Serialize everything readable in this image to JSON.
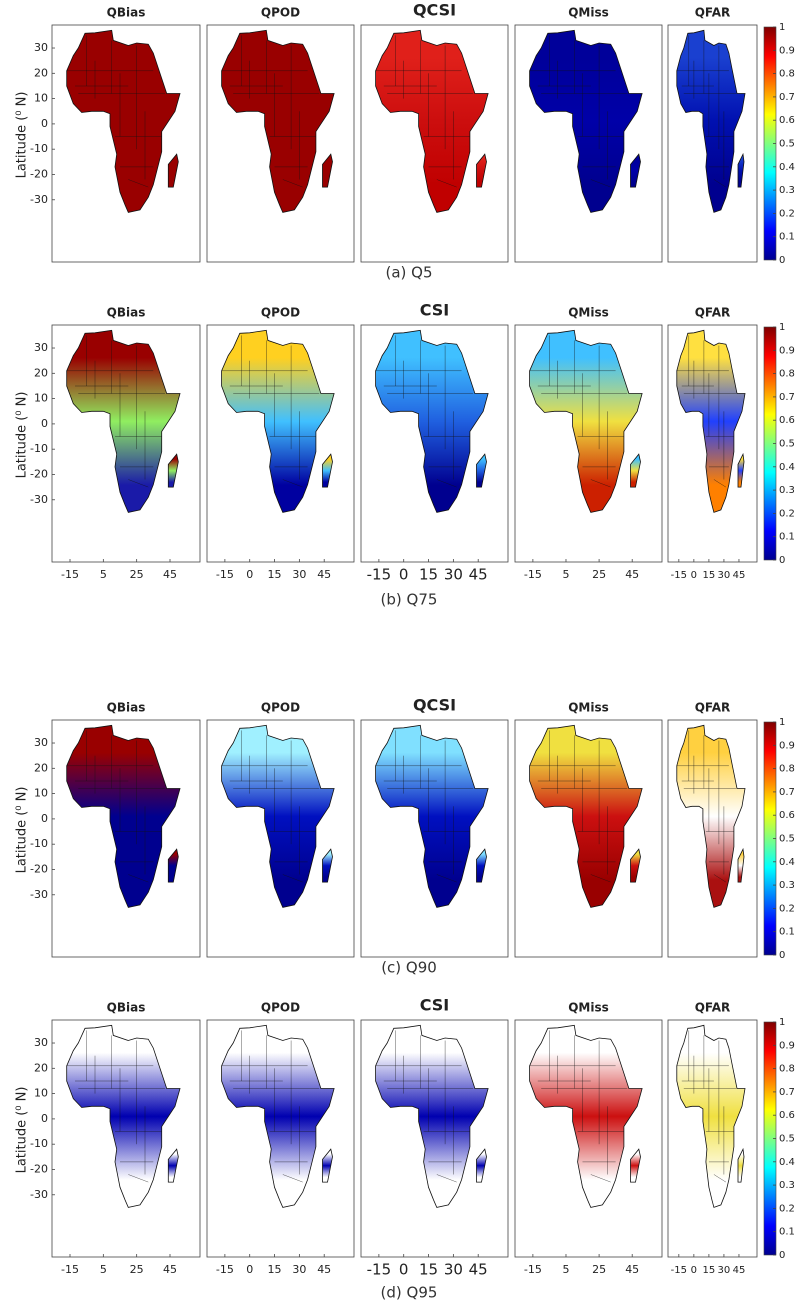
{
  "rows": [
    {
      "caption": "(a) Q5",
      "y_label": "Latitude (⁰ N)",
      "yticks": [
        30,
        20,
        10,
        0,
        -10,
        -20,
        -30
      ],
      "colorbar_ticks": [
        0,
        0.1,
        0.2,
        0.3,
        0.4,
        0.5,
        0.6,
        0.7,
        0.8,
        0.9,
        1
      ],
      "panels": [
        {
          "title": "QBias"
        },
        {
          "title": "QPOD"
        },
        {
          "title": "QCSI"
        },
        {
          "title": "QMiss"
        },
        {
          "title": "QFAR"
        }
      ]
    },
    {
      "caption": "(b) Q75",
      "y_label": "Latitude (⁰ N)",
      "yticks": [
        30,
        20,
        10,
        0,
        -10,
        -20,
        -30
      ],
      "colorbar_ticks": [
        0,
        0.1,
        0.2,
        0.3,
        0.4,
        0.5,
        0.6,
        0.7,
        0.8,
        0.9,
        1
      ],
      "panels": [
        {
          "title": "QBias",
          "xticks": [
            -15,
            5,
            25,
            45
          ]
        },
        {
          "title": "QPOD",
          "xticks": [
            -15,
            0,
            15,
            30,
            45
          ]
        },
        {
          "title": "CSI",
          "xticks": [
            -15,
            0,
            15,
            30,
            45
          ]
        },
        {
          "title": "QMiss",
          "xticks": [
            -15,
            5,
            25,
            45
          ]
        },
        {
          "title": "QFAR",
          "xticks": [
            -15,
            0,
            15,
            30,
            45
          ]
        }
      ]
    },
    {
      "caption": "(c) Q90",
      "y_label": "Latitude (⁰ N)",
      "yticks": [
        30,
        20,
        10,
        0,
        -10,
        -20,
        -30
      ],
      "colorbar_ticks": [
        0,
        0.1,
        0.2,
        0.3,
        0.4,
        0.5,
        0.6,
        0.7,
        0.8,
        0.9,
        1
      ],
      "panels": [
        {
          "title": "QBias"
        },
        {
          "title": "QPOD"
        },
        {
          "title": "QCSI"
        },
        {
          "title": "QMiss"
        },
        {
          "title": "QFAR"
        }
      ]
    },
    {
      "caption": "(d) Q95",
      "y_label": "Latitude (⁰ N)",
      "yticks": [
        30,
        20,
        10,
        0,
        -10,
        -20,
        -30
      ],
      "colorbar_ticks": [
        0,
        0.1,
        0.2,
        0.3,
        0.4,
        0.5,
        0.6,
        0.7,
        0.8,
        0.9,
        1
      ],
      "panels": [
        {
          "title": "QBias",
          "xticks": [
            -15,
            5,
            25,
            45
          ]
        },
        {
          "title": "QPOD",
          "xticks": [
            -15,
            0,
            15,
            30,
            45
          ]
        },
        {
          "title": "CSI",
          "xticks": [
            -15,
            0,
            15,
            30,
            45
          ]
        },
        {
          "title": "QMiss",
          "xticks": [
            -15,
            5,
            25,
            45
          ]
        },
        {
          "title": "QFAR",
          "xticks": [
            -15,
            0,
            15,
            30,
            45
          ]
        }
      ]
    }
  ]
}
